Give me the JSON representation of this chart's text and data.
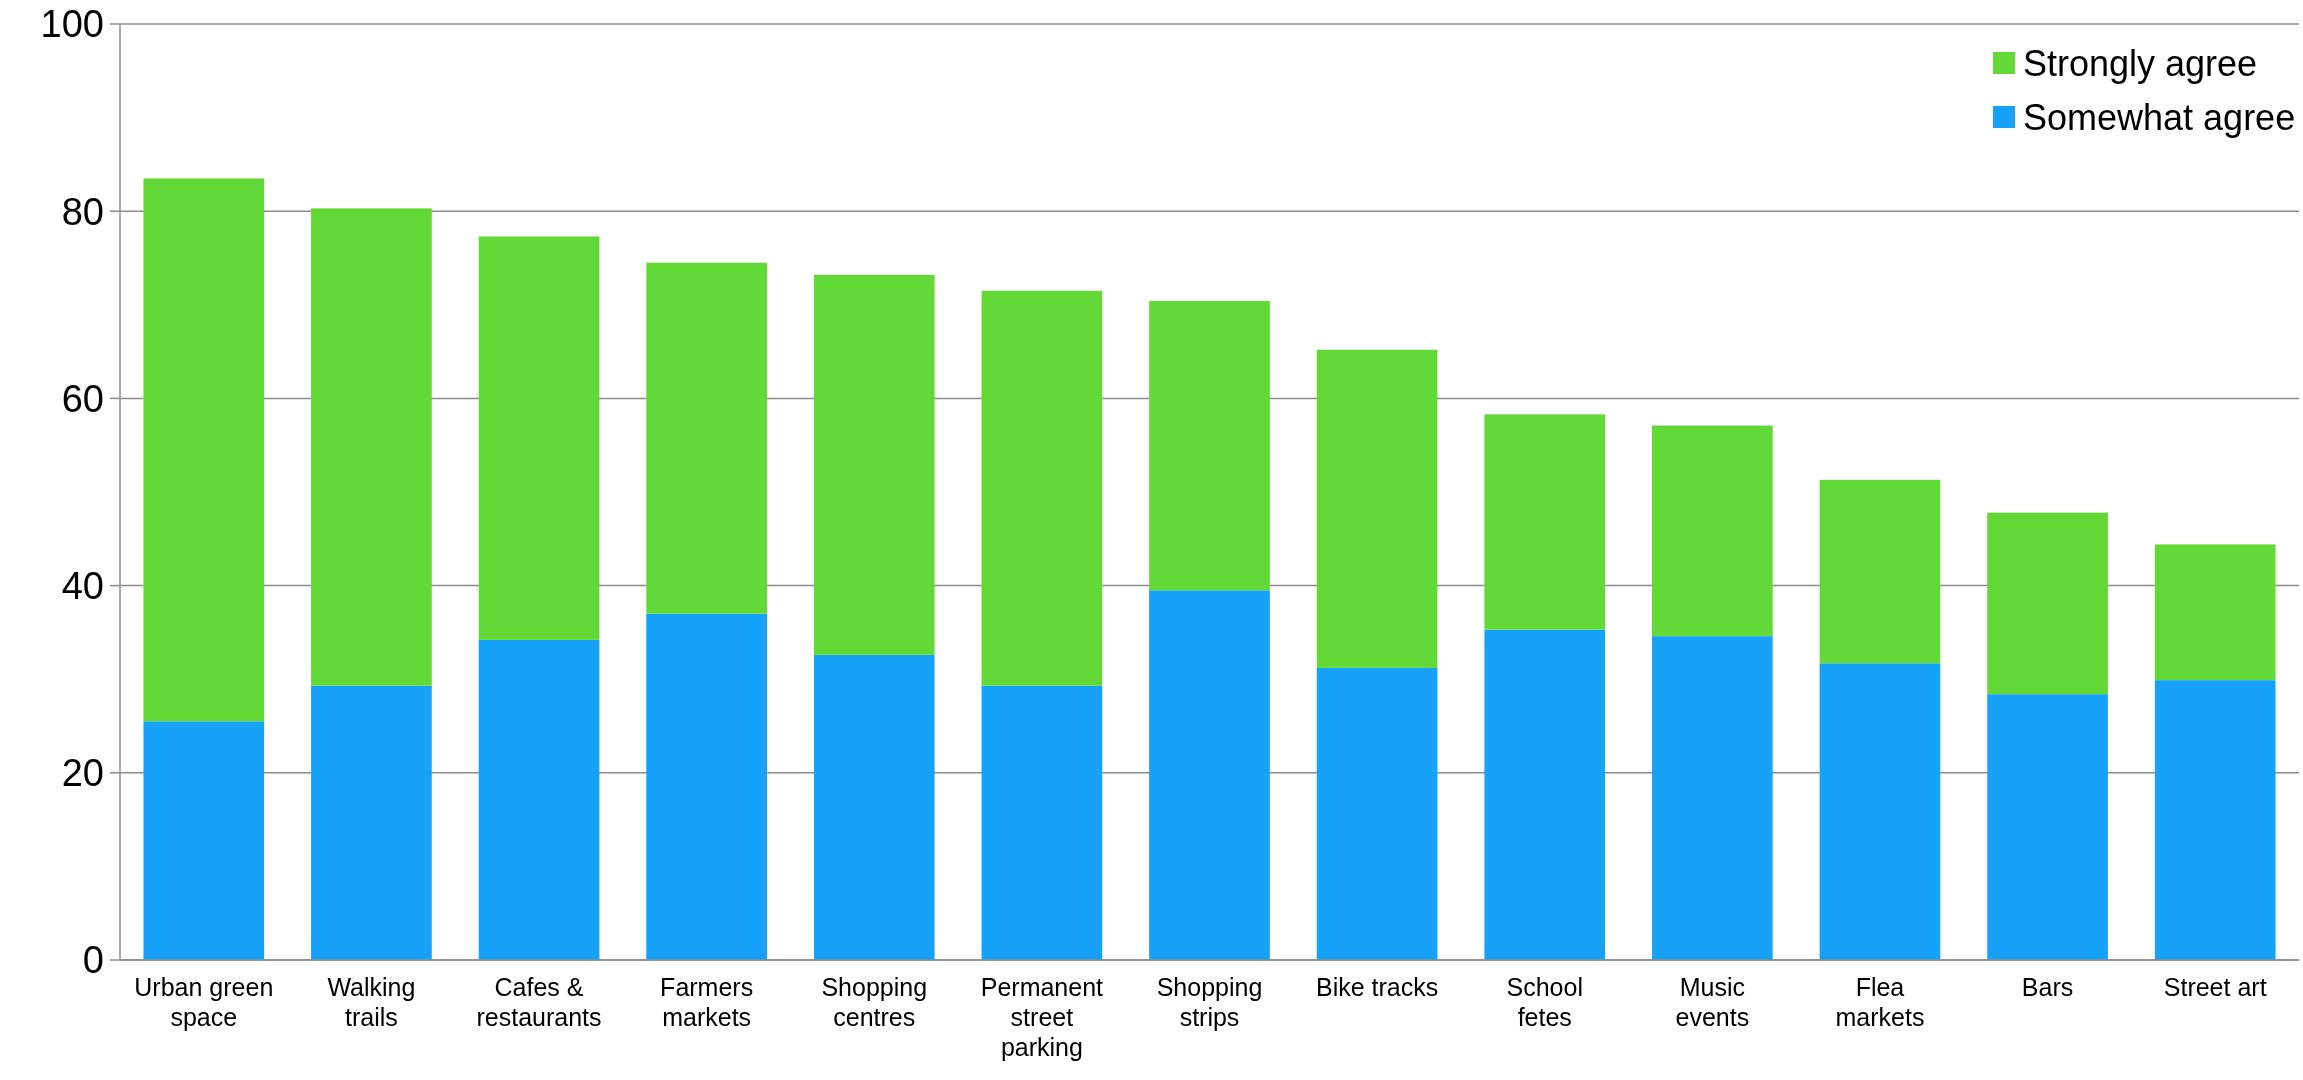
{
  "chart_data": {
    "type": "bar",
    "stacked": true,
    "categories": [
      "Urban green space",
      "Walking trails",
      "Cafes & restaurants",
      "Farmers markets",
      "Shopping centres",
      "Permanent street parking",
      "Shopping strips",
      "Bike tracks",
      "School fetes",
      "Music events",
      "Flea markets",
      "Bars",
      "Street art"
    ],
    "series": [
      {
        "name": "Somewhat agree",
        "color": "#17a2fa",
        "values": [
          25.5,
          29.3,
          34.2,
          37.0,
          32.6,
          29.3,
          39.5,
          31.2,
          35.3,
          34.6,
          31.7,
          28.4,
          29.9
        ]
      },
      {
        "name": "Strongly agree",
        "color": "#62d936",
        "values": [
          58.0,
          51.0,
          43.1,
          37.5,
          40.6,
          42.2,
          30.9,
          34.0,
          23.0,
          22.5,
          19.6,
          19.4,
          14.5
        ]
      }
    ],
    "ylim": [
      0,
      100
    ],
    "yticks": [
      0,
      20,
      40,
      60,
      80,
      100
    ],
    "grid": "y",
    "legend": "top right"
  }
}
